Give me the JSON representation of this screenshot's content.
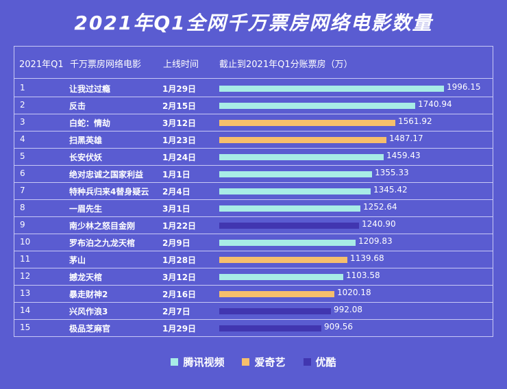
{
  "chart_data": {
    "type": "table",
    "title": "2021年Q1全网千万票房网络电影数量",
    "columns": [
      "2021年Q1",
      "千万票房网络电影",
      "上线时间",
      "截止到2021年Q1分账票房（万）"
    ],
    "rows": [
      {
        "rank": "1",
        "name": "让我过过瘾",
        "date": "1月29日",
        "value": 1996.15,
        "value_label": "1996.15",
        "platform": "腾讯视频"
      },
      {
        "rank": "2",
        "name": "反击",
        "date": "2月15日",
        "value": 1740.94,
        "value_label": "1740.94",
        "platform": "腾讯视频"
      },
      {
        "rank": "3",
        "name": "白蛇：情劫",
        "date": "3月12日",
        "value": 1561.92,
        "value_label": "1561.92",
        "platform": "爱奇艺"
      },
      {
        "rank": "4",
        "name": "扫黑英雄",
        "date": "1月23日",
        "value": 1487.17,
        "value_label": "1487.17",
        "platform": "爱奇艺"
      },
      {
        "rank": "5",
        "name": "长安伏妖",
        "date": "1月24日",
        "value": 1459.43,
        "value_label": "1459.43",
        "platform": "腾讯视频"
      },
      {
        "rank": "6",
        "name": "绝对忠诚之国家利益",
        "date": "1月1日",
        "value": 1355.33,
        "value_label": "1355.33",
        "platform": "腾讯视频"
      },
      {
        "rank": "7",
        "name": "特种兵归来4替身疑云",
        "date": "2月4日",
        "value": 1345.42,
        "value_label": "1345.42",
        "platform": "腾讯视频"
      },
      {
        "rank": "8",
        "name": "一眉先生",
        "date": "3月1日",
        "value": 1252.64,
        "value_label": "1252.64",
        "platform": "腾讯视频"
      },
      {
        "rank": "9",
        "name": "南少林之怒目金刚",
        "date": "1月22日",
        "value": 1240.9,
        "value_label": "1240.90",
        "platform": "优酷"
      },
      {
        "rank": "10",
        "name": "罗布泊之九龙天棺",
        "date": "2月9日",
        "value": 1209.83,
        "value_label": "1209.83",
        "platform": "腾讯视频"
      },
      {
        "rank": "11",
        "name": "茅山",
        "date": "1月28日",
        "value": 1139.68,
        "value_label": "1139.68",
        "platform": "爱奇艺"
      },
      {
        "rank": "12",
        "name": "撼龙天棺",
        "date": "3月12日",
        "value": 1103.58,
        "value_label": "1103.58",
        "platform": "腾讯视频"
      },
      {
        "rank": "13",
        "name": "暴走财神2",
        "date": "2月16日",
        "value": 1020.18,
        "value_label": "1020.18",
        "platform": "爱奇艺"
      },
      {
        "rank": "14",
        "name": "兴风作浪3",
        "date": "2月7日",
        "value": 992.08,
        "value_label": "992.08",
        "platform": "优酷"
      },
      {
        "rank": "15",
        "name": "极品芝麻官",
        "date": "1月29日",
        "value": 909.56,
        "value_label": "909.56",
        "platform": "优酷"
      }
    ],
    "legend": [
      {
        "name": "腾讯视频",
        "color": "#a8ece6"
      },
      {
        "name": "爱奇艺",
        "color": "#f6bf6c"
      },
      {
        "name": "优酷",
        "color": "#4136b0"
      }
    ],
    "xlim": [
      0,
      1996.15
    ]
  }
}
